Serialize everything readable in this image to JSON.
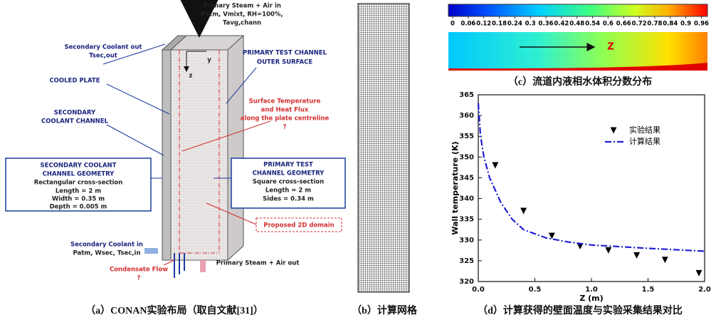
{
  "panel_a": {
    "labels": [
      "Primary Steam + Air in",
      "Patm, Vmixt, RH=100%,",
      "Tavg,chann",
      "Secondary Coolant out",
      "Tsec,out",
      "PRIMARY TEST CHANNEL",
      "OUTER SURFACE",
      "COOLED PLATE",
      "SECONDARY",
      "COOLANT CHANNEL",
      "Surface Temperature",
      "and Heat Flux",
      "along the plate centreline",
      "?",
      "SECONDARY COOLANT",
      "CHANNEL GEOMETRY",
      "Rectangular cross-section",
      "Length = 2 m",
      "Width = 0.35 m",
      "Depth = 0.005 m",
      "PRIMARY TEST",
      "CHANNEL GEOMETRY",
      "Square cross-section",
      "Length = 2 m",
      "Sides = 0.34 m",
      "Proposed 2D domain",
      "Secondary Coolant in",
      "Patm, Wsec, Tsec,in",
      "Primary Steam + Air out",
      "Condensate Flow",
      "?",
      "y",
      "z"
    ],
    "caption": "（a）CONAN实验布局（取自文献[31]）"
  },
  "panel_b": {
    "caption": "（b）计算网格"
  },
  "panel_c": {
    "colorbar_ticks": [
      0,
      0.06,
      0.12,
      0.18,
      0.24,
      0.3,
      0.36,
      0.42,
      0.48,
      0.54,
      0.6,
      0.66,
      0.72,
      0.78,
      0.84,
      0.9,
      0.96
    ],
    "colorbar_range": [
      0,
      1
    ],
    "field_label": "Z",
    "caption": "（c）流道内液相水体积分数分布"
  },
  "chart_data": {
    "type": "line",
    "x_label": "Z (m)",
    "y_label": "Wall temperature (K)",
    "xlim": [
      0,
      2
    ],
    "ylim": [
      320,
      365
    ],
    "xticks": [
      {
        "value": 0,
        "label": "0.0"
      },
      0.5,
      {
        "value": 1,
        "label": "1.0"
      },
      1.5,
      {
        "value": 2,
        "label": "2.0"
      }
    ],
    "yticks": [
      320,
      325,
      330,
      335,
      340,
      345,
      350,
      355,
      360,
      365
    ],
    "legend": "upper right",
    "series": [
      {
        "name": "实验结果",
        "kind": "scatter",
        "color": "#000000",
        "x": [
          0.15,
          0.4,
          0.65,
          0.9,
          1.15,
          1.4,
          1.65,
          1.95
        ],
        "values": [
          348,
          337,
          331,
          328.5,
          327.5,
          326.3,
          325.2,
          322
        ]
      },
      {
        "name": "计算结果",
        "kind": "line",
        "color": "#1f1fd6",
        "x": [
          0,
          0.02,
          0.05,
          0.1,
          0.2,
          0.3,
          0.4,
          0.6,
          0.8,
          1.0,
          1.5,
          2.0
        ],
        "values": [
          363,
          355,
          350,
          345,
          339,
          335,
          332.5,
          330.5,
          329.5,
          328.8,
          328,
          327.3
        ]
      }
    ],
    "caption": "（d）计算获得的壁面温度与实验采集结果对比"
  }
}
